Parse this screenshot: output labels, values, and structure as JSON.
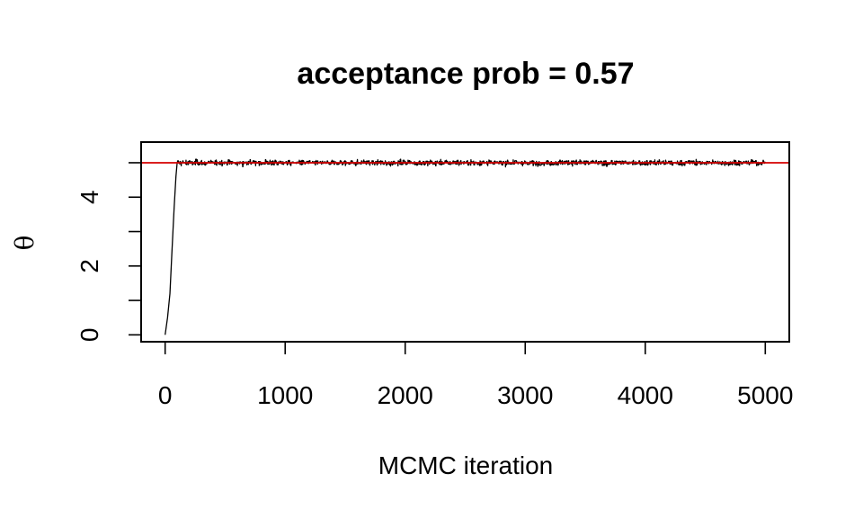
{
  "chart_data": {
    "type": "line",
    "title": "acceptance prob = 0.57",
    "xlabel": "MCMC iteration",
    "ylabel": "θ",
    "xlim": [
      -200,
      5200
    ],
    "ylim": [
      -0.2,
      5.6
    ],
    "x_ticks": [
      0,
      1000,
      2000,
      3000,
      4000,
      5000
    ],
    "y_ticks": [
      0,
      1,
      2,
      3,
      4,
      5
    ],
    "y_tick_labels": [
      "0",
      "",
      "2",
      "",
      "4",
      ""
    ],
    "reference_line": {
      "y": 5,
      "color": "#d40000"
    },
    "series": [
      {
        "color": "#000000",
        "n_iterations": 5000,
        "burn_in_path": [
          [
            0,
            0.0
          ],
          [
            20,
            0.5
          ],
          [
            40,
            1.2
          ],
          [
            55,
            2.3
          ],
          [
            65,
            3.0
          ],
          [
            75,
            3.7
          ],
          [
            90,
            4.6
          ],
          [
            100,
            5.0
          ]
        ],
        "stationary_mean": 5.0,
        "stationary_range": [
          4.7,
          5.3
        ]
      }
    ],
    "grid": false,
    "legend": "none"
  }
}
